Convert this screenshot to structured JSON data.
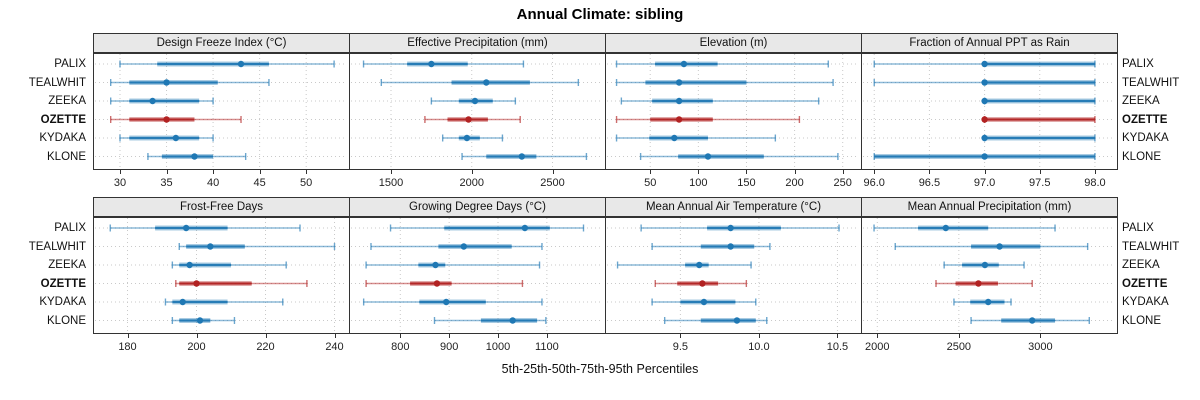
{
  "title": "Annual Climate: sibling",
  "footer": "5th-25th-50th-75th-95th Percentiles",
  "stations": [
    "PALIX",
    "TEALWHIT",
    "ZEEKA",
    "OZETTE",
    "KYDAKA",
    "KLONE"
  ],
  "highlight_station": "OZETTE",
  "colors": {
    "series_blue": "#1f78b4",
    "highlight_red": "#b22222",
    "strip_bg": "#e8e8e8",
    "panel_border": "#333333",
    "gridline": "#c9c9c9",
    "text": "#111111"
  },
  "chart_data": {
    "type": "scatter",
    "variant": "point-interval: dot = 50th percentile, thick band = 25th-75th, thin capped line = 5th-95th",
    "percentile_labels": [
      "5th",
      "25th",
      "50th",
      "75th",
      "95th"
    ],
    "categories": [
      "PALIX",
      "TEALWHIT",
      "ZEEKA",
      "OZETTE",
      "KYDAKA",
      "KLONE"
    ],
    "grid": "dotted",
    "legend_position": "none",
    "panels": [
      {
        "title": "Design Freeze Index (°C)",
        "facet_row": 0,
        "xlim": [
          27.1,
          54.6
        ],
        "tick_labels": [
          "30",
          "35",
          "40",
          "45",
          "50"
        ],
        "tick_values": [
          30,
          35,
          40,
          45,
          50
        ],
        "values": [
          [
            30,
            34,
            43,
            46,
            53
          ],
          [
            29,
            31,
            35,
            40.5,
            46
          ],
          [
            29,
            31,
            33.5,
            38.5,
            40
          ],
          [
            29,
            31,
            35,
            38,
            43
          ],
          [
            30,
            31,
            36,
            38.5,
            40
          ],
          [
            33,
            34.5,
            38,
            40,
            43.5
          ]
        ]
      },
      {
        "title": "Effective Precipitation (mm)",
        "facet_row": 0,
        "xlim": [
          1240,
          2825
        ],
        "tick_labels": [
          "1500",
          "2000",
          "2500"
        ],
        "tick_values": [
          1500,
          2000,
          2500
        ],
        "values": [
          [
            1330,
            1600,
            1750,
            1975,
            2320
          ],
          [
            1440,
            1875,
            2090,
            2360,
            2660
          ],
          [
            1750,
            1920,
            2020,
            2130,
            2270
          ],
          [
            1710,
            1850,
            1980,
            2100,
            2300
          ],
          [
            1820,
            1920,
            1970,
            2050,
            2190
          ],
          [
            1940,
            2090,
            2310,
            2400,
            2710
          ]
        ]
      },
      {
        "title": "Elevation (m)",
        "facet_row": 0,
        "xlim": [
          3,
          269
        ],
        "tick_labels": [
          "50",
          "100",
          "150",
          "200",
          "250"
        ],
        "tick_values": [
          50,
          100,
          150,
          200,
          250
        ],
        "values": [
          [
            15,
            55,
            85,
            120,
            235
          ],
          [
            15,
            45,
            80,
            150,
            240
          ],
          [
            20,
            52,
            80,
            115,
            225
          ],
          [
            15,
            50,
            80,
            115,
            205
          ],
          [
            15,
            49,
            75,
            110,
            180
          ],
          [
            40,
            79,
            110,
            168,
            245
          ]
        ]
      },
      {
        "title": "Fraction of Annual PPT as Rain",
        "facet_row": 0,
        "xlim": [
          95.88,
          98.2
        ],
        "tick_labels": [
          "96.0",
          "96.5",
          "97.0",
          "97.5",
          "98.0"
        ],
        "tick_values": [
          96,
          96.5,
          97,
          97.5,
          98
        ],
        "values": [
          [
            96,
            97,
            97,
            98,
            98
          ],
          [
            96,
            97,
            97,
            98,
            98
          ],
          [
            97,
            97,
            97,
            98,
            98
          ],
          [
            97,
            97,
            97,
            98,
            98
          ],
          [
            97,
            97,
            97,
            98,
            98
          ],
          [
            96,
            96,
            97,
            98,
            98
          ]
        ]
      },
      {
        "title": "Frost-Free Days",
        "facet_row": 1,
        "xlim": [
          170,
          244.2
        ],
        "tick_labels": [
          "180",
          "200",
          "220",
          "240"
        ],
        "tick_values": [
          180,
          200,
          220,
          240
        ],
        "values": [
          [
            175,
            188,
            197,
            209,
            230
          ],
          [
            195,
            197,
            204,
            214,
            240
          ],
          [
            193,
            195,
            198,
            210,
            226
          ],
          [
            194,
            195,
            200,
            216,
            232
          ],
          [
            191,
            193,
            196,
            209,
            225
          ],
          [
            193,
            195,
            201,
            204,
            211
          ]
        ]
      },
      {
        "title": "Growing Degree Days (°C)",
        "facet_row": 1,
        "xlim": [
          695,
          1219
        ],
        "tick_labels": [
          "800",
          "900",
          "1000",
          "1100"
        ],
        "tick_values": [
          800,
          900,
          1000,
          1100
        ],
        "values": [
          [
            780,
            890,
            1055,
            1106,
            1175
          ],
          [
            740,
            878,
            930,
            1028,
            1090
          ],
          [
            730,
            837,
            872,
            892,
            1085
          ],
          [
            730,
            820,
            875,
            905,
            1050
          ],
          [
            725,
            839,
            894,
            975,
            1090
          ],
          [
            870,
            965,
            1030,
            1080,
            1098
          ]
        ]
      },
      {
        "title": "Mean Annual Air Temperature (°C)",
        "facet_row": 1,
        "xlim": [
          9.02,
          10.65
        ],
        "tick_labels": [
          "9.5",
          "10.0",
          "10.5"
        ],
        "tick_values": [
          9.5,
          10,
          10.5
        ],
        "values": [
          [
            9.25,
            9.67,
            9.82,
            10.14,
            10.51
          ],
          [
            9.32,
            9.63,
            9.82,
            9.97,
            10.07
          ],
          [
            9.1,
            9.53,
            9.62,
            9.68,
            9.95
          ],
          [
            9.34,
            9.48,
            9.64,
            9.74,
            9.92
          ],
          [
            9.32,
            9.5,
            9.65,
            9.85,
            9.98
          ],
          [
            9.4,
            9.63,
            9.86,
            9.98,
            10.05
          ]
        ]
      },
      {
        "title": "Mean Annual Precipitation (mm)",
        "facet_row": 1,
        "xlim": [
          1900,
          3470
        ],
        "tick_labels": [
          "2000",
          "2500",
          "3000"
        ],
        "tick_values": [
          2000,
          2500,
          3000
        ],
        "values": [
          [
            1980,
            2250,
            2420,
            2680,
            3090
          ],
          [
            2110,
            2575,
            2750,
            3000,
            3290
          ],
          [
            2410,
            2520,
            2660,
            2745,
            2900
          ],
          [
            2360,
            2480,
            2620,
            2740,
            2950
          ],
          [
            2470,
            2570,
            2680,
            2780,
            2820
          ],
          [
            2575,
            2760,
            2950,
            3090,
            3300
          ]
        ]
      }
    ]
  }
}
